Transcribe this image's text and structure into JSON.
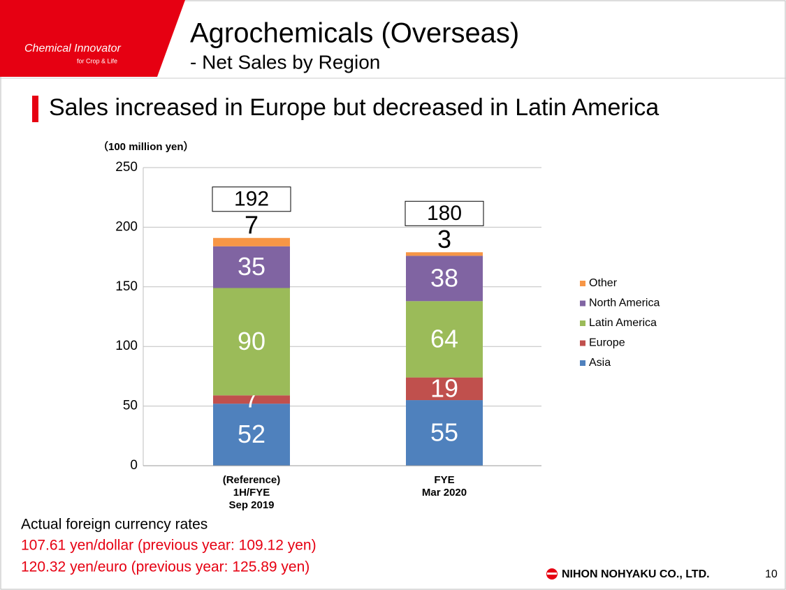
{
  "header": {
    "logo": "Chemical Innovator",
    "logo_tagline": "for Crop & Life",
    "title": "Agrochemicals (Overseas)",
    "subtitle": "- Net Sales by Region",
    "headline": "Sales increased in Europe but decreased in Latin America"
  },
  "chart_data": {
    "type": "stacked_bar",
    "y_label": "（100 million yen）",
    "categories": [
      "(Reference)\n1H/FYE\nSep 2019",
      "FYE\nMar 2020"
    ],
    "series": [
      {
        "name": "Asia",
        "color": "#4f81bd",
        "values": [
          52,
          55
        ]
      },
      {
        "name": "Europe",
        "color": "#c0504d",
        "values": [
          7,
          19
        ]
      },
      {
        "name": "Latin America",
        "color": "#9bbb59",
        "values": [
          90,
          64
        ]
      },
      {
        "name": "North America",
        "color": "#8064a2",
        "values": [
          35,
          38
        ]
      },
      {
        "name": "Other",
        "color": "#f79646",
        "values": [
          7,
          3
        ]
      }
    ],
    "totals": [
      192,
      180
    ],
    "ylim": [
      0,
      250
    ],
    "yticks": [
      0,
      50,
      100,
      150,
      200,
      250
    ],
    "grid": true,
    "legend": "right"
  },
  "notes": {
    "heading": "Actual foreign currency rates",
    "lines": [
      "107.61 yen/dollar (previous year: 109.12 yen)",
      "120.32 yen/euro (previous year: 125.89 yen)"
    ]
  },
  "footer": {
    "company": "NIHON NOHYAKU CO., LTD.",
    "page": "10"
  }
}
